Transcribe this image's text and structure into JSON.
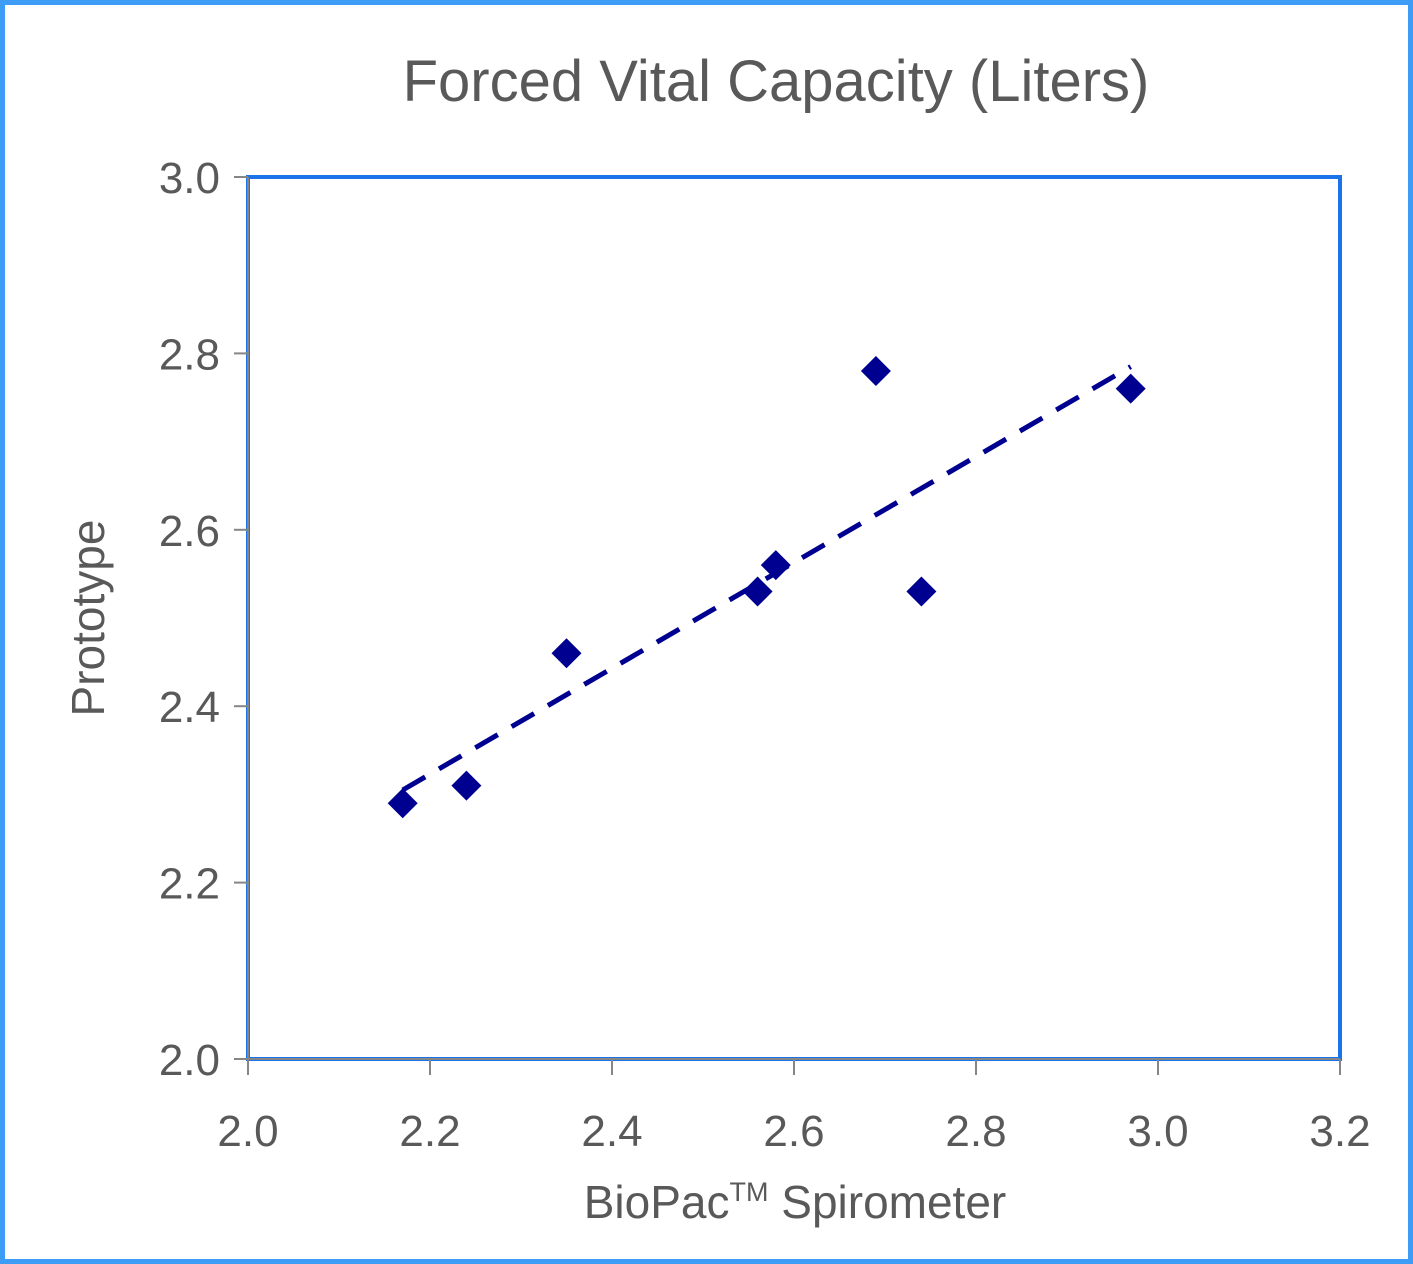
{
  "chart_data": {
    "type": "scatter",
    "title": "Forced Vital Capacity (Liters)",
    "xlabel": "BioPac",
    "xlabel_superscript": "TM",
    "xlabel_suffix": " Spirometer",
    "ylabel": "Prototype",
    "xlim": [
      2.0,
      3.2
    ],
    "ylim": [
      2.0,
      3.0
    ],
    "x_ticks": [
      "2.0",
      "2.2",
      "2.4",
      "2.6",
      "2.8",
      "3.0",
      "3.2"
    ],
    "y_ticks": [
      "2.0",
      "2.2",
      "2.4",
      "2.6",
      "2.8",
      "3.0"
    ],
    "grid": false,
    "legend": "none",
    "series": [
      {
        "marker": "diamond",
        "color": "#000090",
        "points": [
          {
            "x": 2.17,
            "y": 2.29
          },
          {
            "x": 2.24,
            "y": 2.31
          },
          {
            "x": 2.35,
            "y": 2.46
          },
          {
            "x": 2.56,
            "y": 2.53
          },
          {
            "x": 2.58,
            "y": 2.56
          },
          {
            "x": 2.69,
            "y": 2.78
          },
          {
            "x": 2.74,
            "y": 2.53
          },
          {
            "x": 2.97,
            "y": 2.76
          }
        ]
      }
    ],
    "trendline": {
      "style": "dashed",
      "color": "#000090",
      "from": {
        "x": 2.17,
        "y": 2.305
      },
      "to": {
        "x": 2.97,
        "y": 2.785
      }
    },
    "plot_border_color": "#1a73e8",
    "frame_border_color": "#3d9cf5"
  }
}
